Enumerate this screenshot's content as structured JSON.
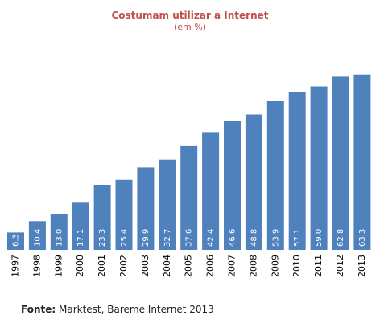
{
  "chart_data": {
    "type": "bar",
    "title": "Costumam utilizar a Internet",
    "subtitle": "(em %)",
    "categories": [
      "1997",
      "1998",
      "1999",
      "2000",
      "2001",
      "2002",
      "2003",
      "2004",
      "2005",
      "2006",
      "2007",
      "2008",
      "2009",
      "2010",
      "2011",
      "2012",
      "2013"
    ],
    "values": [
      6.3,
      10.4,
      13.0,
      17.1,
      23.3,
      25.4,
      29.9,
      32.7,
      37.6,
      42.4,
      46.6,
      48.8,
      53.9,
      57.1,
      59.0,
      62.8,
      63.3
    ],
    "value_labels": [
      "6.3",
      "10.4",
      "13.0",
      "17.1",
      "23.3",
      "25.4",
      "29.9",
      "32.7",
      "37.6",
      "42.4",
      "46.6",
      "48.8",
      "53.9",
      "57.1",
      "59.0",
      "62.8",
      "63.3"
    ],
    "xlabel": "",
    "ylabel": "",
    "ylim": [
      0,
      67
    ],
    "grid": false,
    "legend": "none",
    "bar_color": "#4f81bd",
    "label_color": "#ffffff"
  },
  "source": {
    "label": "Fonte:",
    "text": " Marktest, Bareme Internet 2013"
  }
}
